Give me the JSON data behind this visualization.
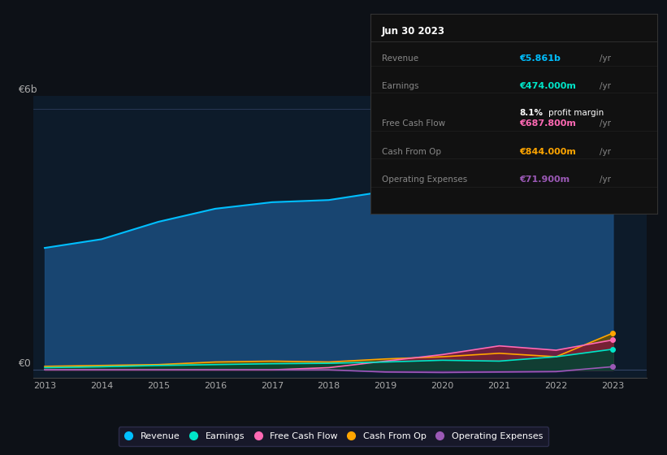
{
  "bg_color": "#0d1117",
  "plot_bg_color": "#0d1b2a",
  "years": [
    2013,
    2014,
    2015,
    2016,
    2017,
    2018,
    2019,
    2020,
    2021,
    2022,
    2023
  ],
  "revenue": [
    2.8,
    3.0,
    3.4,
    3.7,
    3.85,
    3.9,
    4.1,
    4.5,
    3.85,
    4.5,
    5.86
  ],
  "earnings": [
    0.05,
    0.07,
    0.1,
    0.12,
    0.14,
    0.15,
    0.18,
    0.22,
    0.2,
    0.3,
    0.474
  ],
  "free_cash_flow": [
    0.0,
    0.0,
    0.0,
    0.0,
    0.0,
    0.05,
    0.2,
    0.35,
    0.55,
    0.45,
    0.6878
  ],
  "cash_from_op": [
    0.08,
    0.1,
    0.12,
    0.18,
    0.2,
    0.18,
    0.25,
    0.3,
    0.38,
    0.3,
    0.844
  ],
  "operating_expenses": [
    0.0,
    0.0,
    0.0,
    0.0,
    0.0,
    0.0,
    -0.05,
    -0.06,
    -0.05,
    -0.04,
    0.0719
  ],
  "revenue_color": "#00bfff",
  "earnings_color": "#00e5c8",
  "free_cash_flow_color": "#ff69b4",
  "cash_from_op_color": "#ffa500",
  "operating_expenses_color": "#9b59b6",
  "revenue_fill": "#1a4a7a",
  "cashop_fill": "#6b5000",
  "fcf_fill": "#7a1a3a",
  "earnings_fill": "#004433",
  "opex_fill": "#4a1a7a",
  "ylabel_6b": "€6b",
  "ylabel_0": "€0",
  "info_box": {
    "date": "Jun 30 2023",
    "revenue_label": "Revenue",
    "revenue_value": "€5.861b",
    "revenue_unit": "/yr",
    "earnings_label": "Earnings",
    "earnings_value": "€474.000m",
    "earnings_unit": "/yr",
    "margin_value": "8.1%",
    "margin_text": "profit margin",
    "fcf_label": "Free Cash Flow",
    "fcf_value": "€687.800m",
    "fcf_unit": "/yr",
    "cashop_label": "Cash From Op",
    "cashop_value": "€844.000m",
    "cashop_unit": "/yr",
    "opex_label": "Operating Expenses",
    "opex_value": "€71.900m",
    "opex_unit": "/yr"
  },
  "legend_items": [
    "Revenue",
    "Earnings",
    "Free Cash Flow",
    "Cash From Op",
    "Operating Expenses"
  ]
}
